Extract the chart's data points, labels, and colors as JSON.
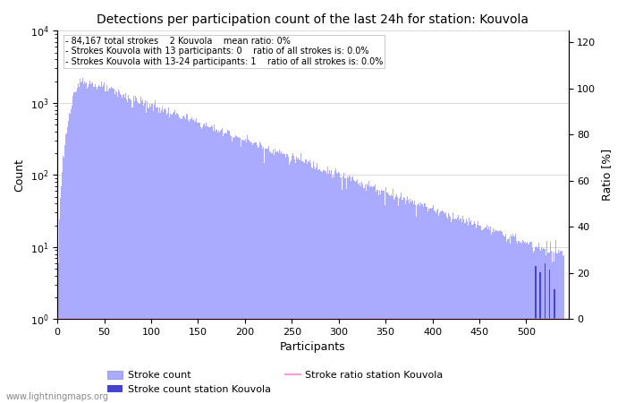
{
  "title": "Detections per participation count of the last 24h for station: Kouvola",
  "xlabel": "Participants",
  "ylabel_left": "Count",
  "ylabel_right": "Ratio [%]",
  "annotation_lines": [
    "84,167 total strokes    2 Kouvola    mean ratio: 0%",
    "Strokes Kouvola with 13 participants: 0    ratio of all strokes is: 0.0%",
    "Strokes Kouvola with 13-24 participants: 1    ratio of all strokes is: 0.0%"
  ],
  "bar_color_light": "#aaaaff",
  "bar_color_dark": "#4444cc",
  "ratio_line_color": "#ff99dd",
  "watermark": "www.lightningmaps.org",
  "xlim": [
    0,
    545
  ],
  "ylim_log_min": 1,
  "ylim_log_max": 10000,
  "ylim_ratio": [
    0,
    125
  ],
  "ratio_ticks": [
    0,
    20,
    40,
    60,
    80,
    100,
    120
  ],
  "x_ticks": [
    0,
    50,
    100,
    150,
    200,
    250,
    300,
    350,
    400,
    450,
    500
  ],
  "figsize": [
    7.0,
    4.5
  ],
  "dpi": 100,
  "n_participants": 540,
  "peak_value": 2100,
  "peak_x": 25,
  "decay_rate": 0.011,
  "station_x_values": [
    510,
    515,
    520,
    525,
    530
  ],
  "ratio_spike_x": 350,
  "ratio_spike_y": 0.4
}
